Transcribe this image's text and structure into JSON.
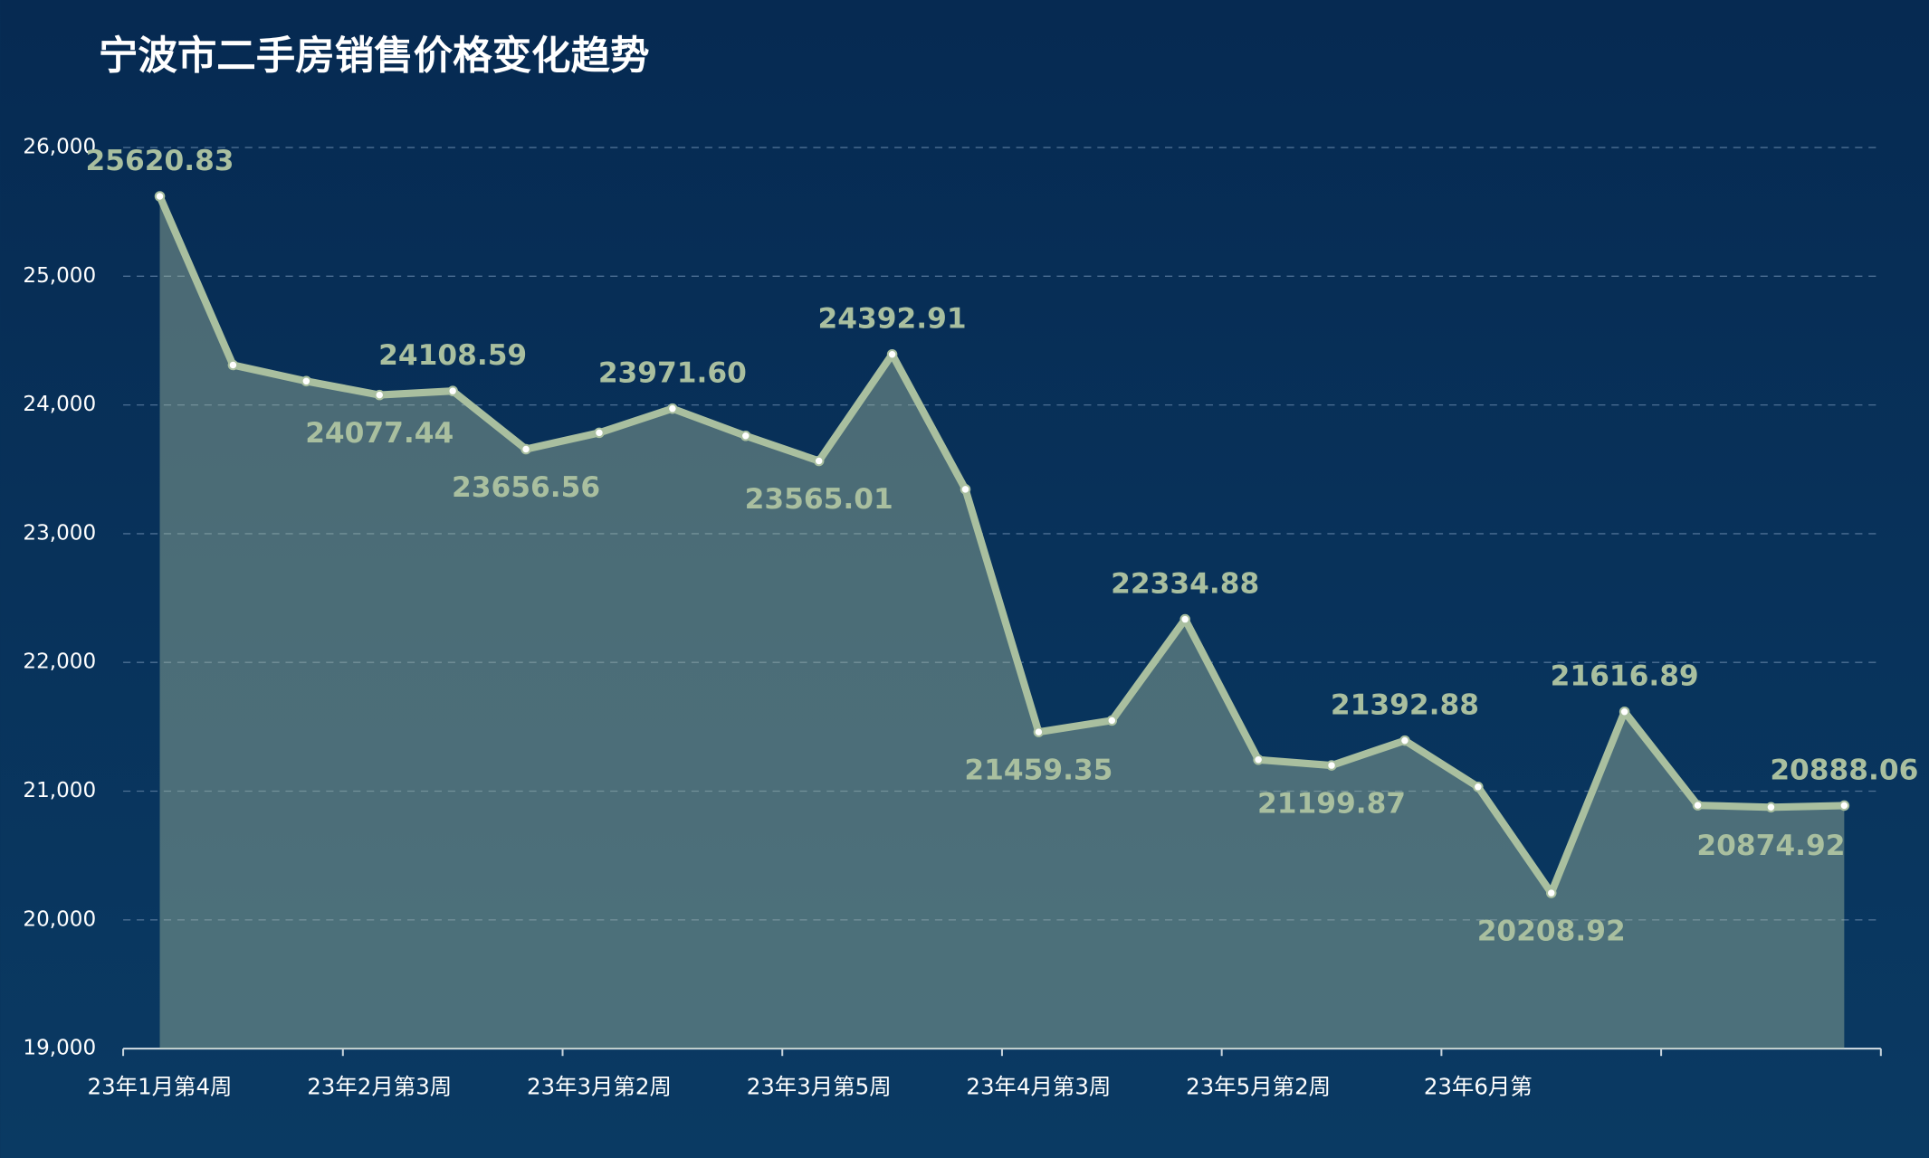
{
  "chart_data": {
    "type": "line",
    "title": "宁波市二手房销售价格变化趋势",
    "categories": [
      "23年1月第4周",
      null,
      null,
      "23年2月第3周",
      null,
      null,
      "23年3月第2周",
      null,
      null,
      "23年3月第5周",
      null,
      null,
      "23年4月第3周",
      null,
      null,
      "23年5月第2周",
      null,
      null,
      "23年6月第",
      null,
      null,
      null,
      null,
      null
    ],
    "series": [
      {
        "color": "#a9bf9f",
        "values": [
          25620.83,
          24310,
          24185,
          24077.44,
          24108.59,
          23656.56,
          23784,
          23971.6,
          23760,
          23565.01,
          24392.91,
          23345,
          21459.35,
          21549,
          22334.88,
          21244,
          21199.87,
          21392.88,
          21033,
          20208.92,
          21616.89,
          20890,
          20874.92,
          20888.06
        ],
        "value_labels": [
          "25620.83",
          null,
          null,
          "24077.44",
          "24108.59",
          "23656.56",
          null,
          "23971.60",
          null,
          "23565.01",
          "24392.91",
          null,
          "21459.35",
          null,
          "22334.88",
          null,
          "21199.87",
          "21392.88",
          null,
          "20208.92",
          "21616.89",
          null,
          "20874.92",
          "20888.06"
        ]
      }
    ],
    "ylim": [
      19000,
      26000
    ],
    "yticks": [
      {
        "value": 19000,
        "label": "19,000"
      },
      {
        "value": 20000,
        "label": "20,000"
      },
      {
        "value": 21000,
        "label": "21,000"
      },
      {
        "value": 22000,
        "label": "22,000"
      },
      {
        "value": 23000,
        "label": "23,000"
      },
      {
        "value": 24000,
        "label": "24,000"
      },
      {
        "value": 25000,
        "label": "25,000"
      },
      {
        "value": 26000,
        "label": "26,000"
      }
    ],
    "grid": true
  }
}
